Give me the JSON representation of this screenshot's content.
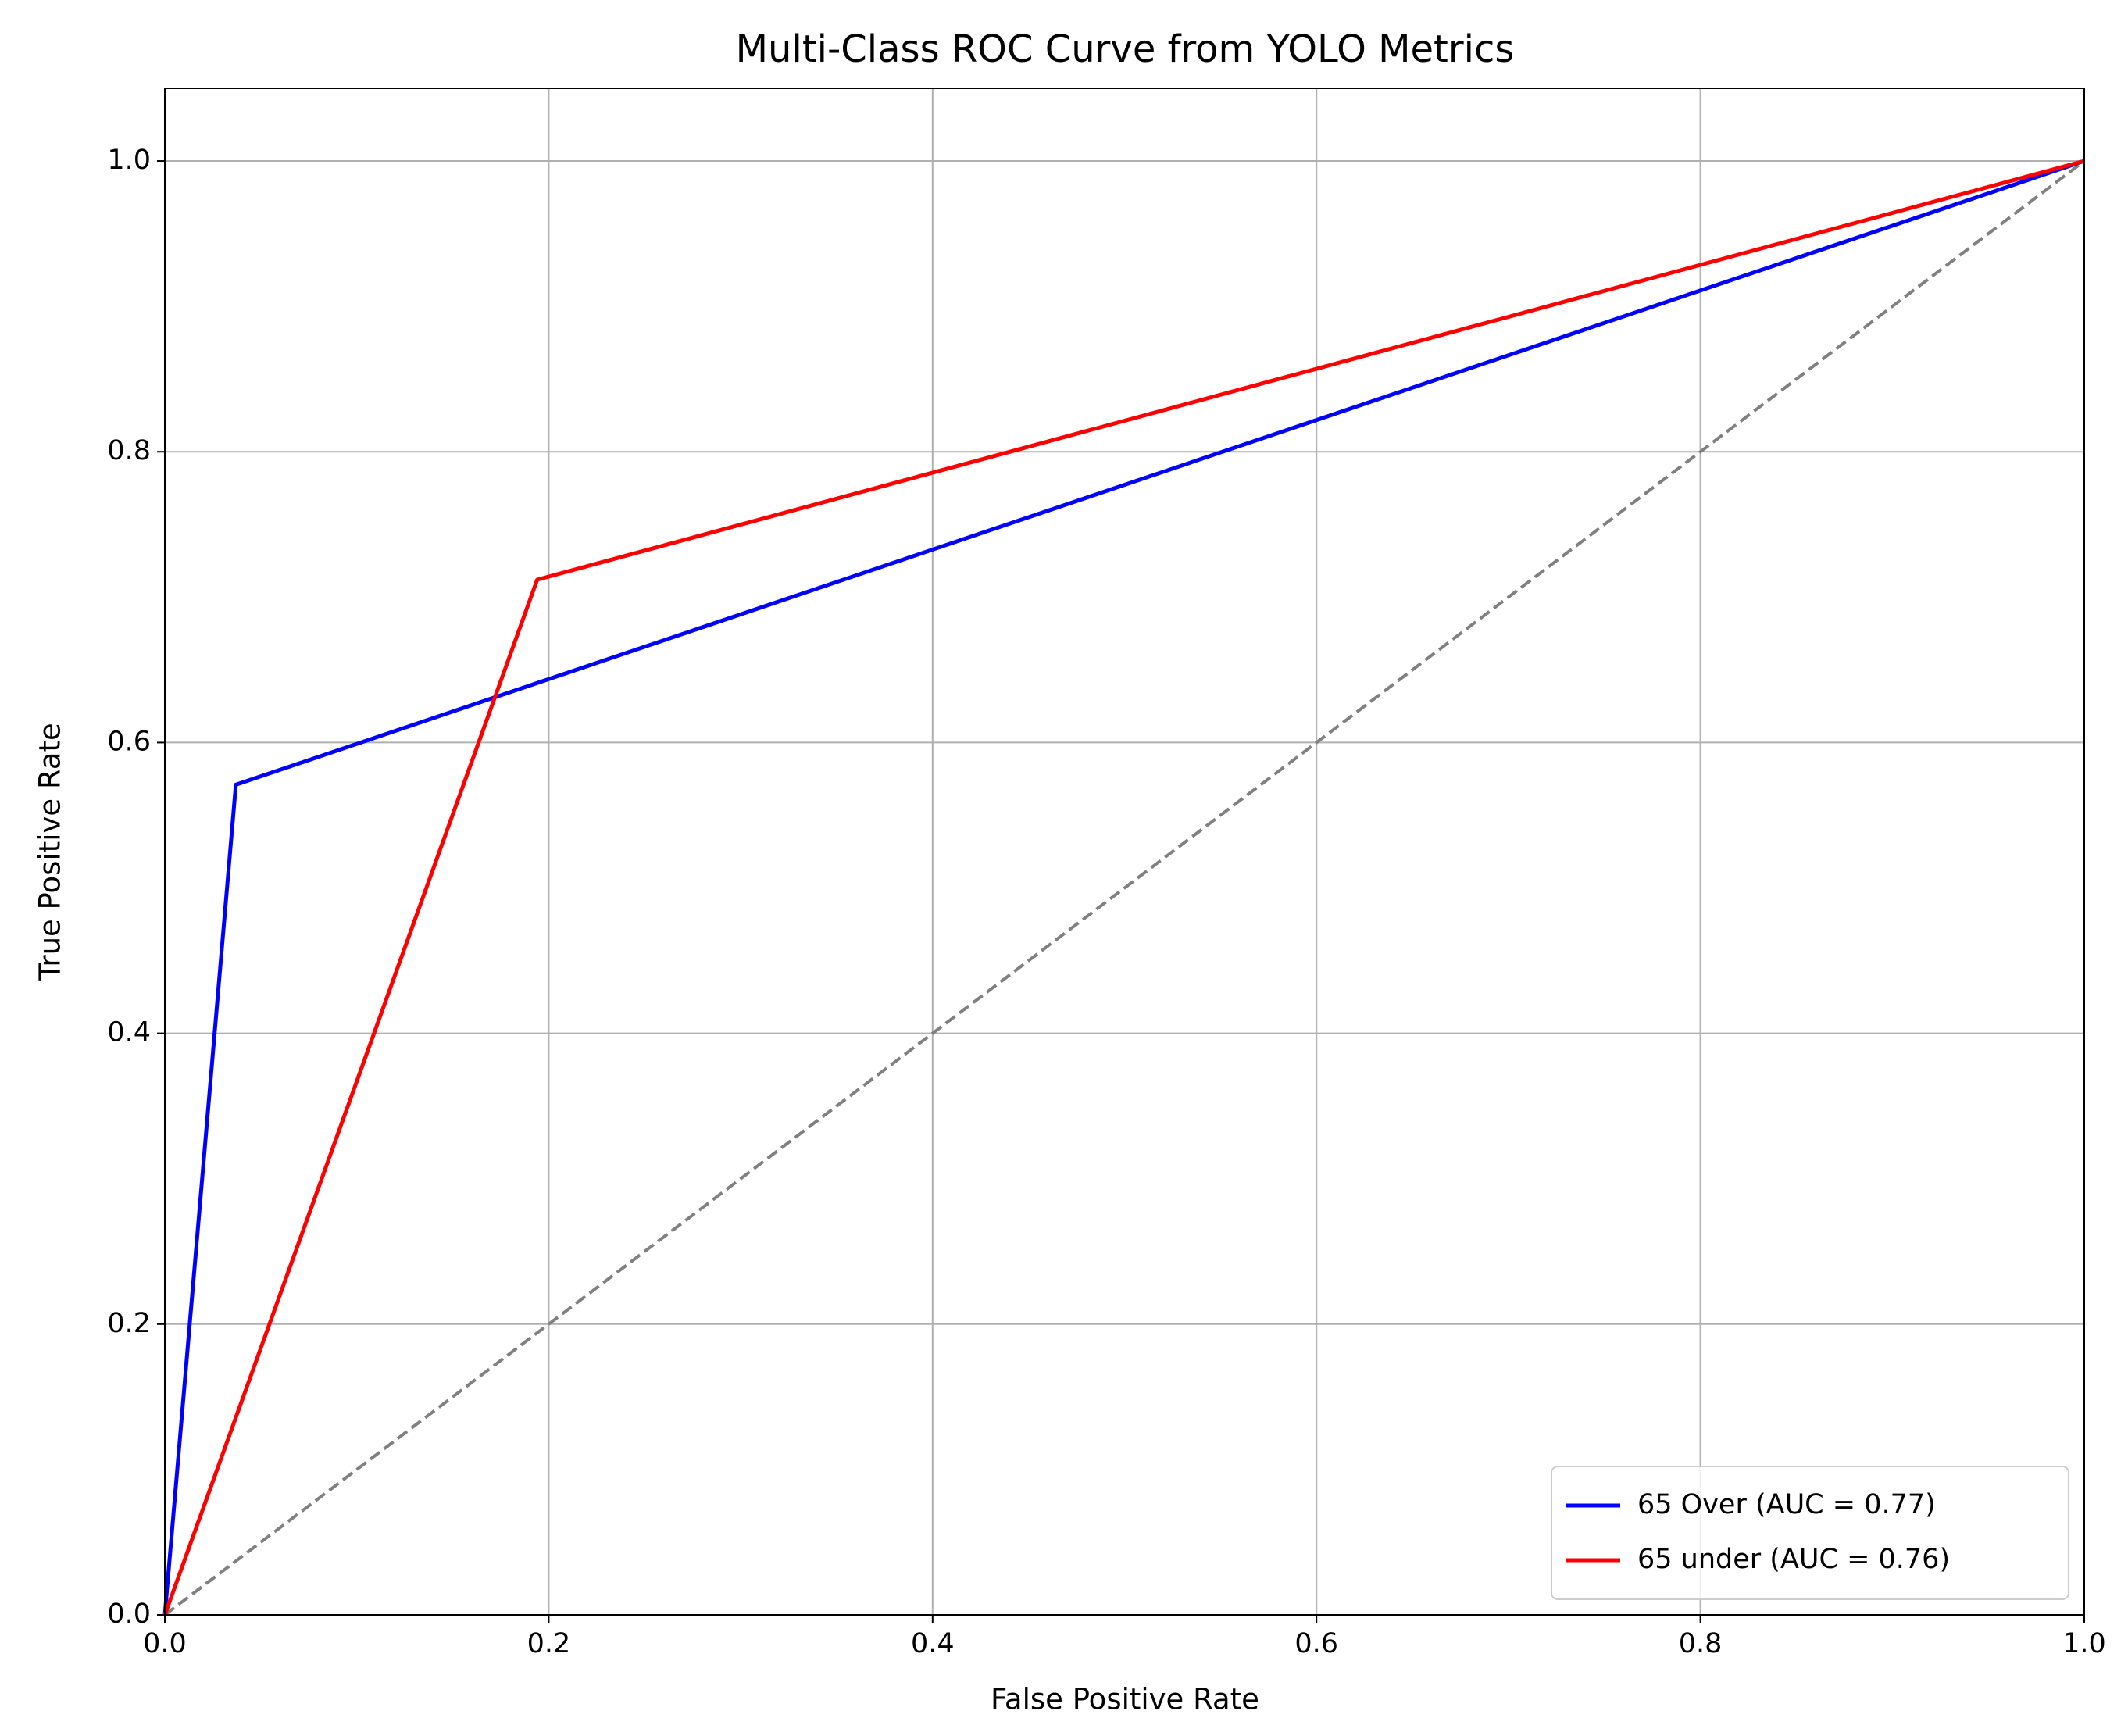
{
  "chart_data": {
    "type": "line",
    "title": "Multi-Class ROC Curve from YOLO Metrics",
    "x_label": "False Positive Rate",
    "y_label": "True Positive Rate",
    "series": [
      {
        "name": "65 Over (AUC = 0.77)",
        "color": "#0000ff",
        "x": [
          0,
          0.037,
          1
        ],
        "values": [
          0,
          0.571,
          1
        ]
      },
      {
        "name": "65 under (AUC = 0.76)",
        "color": "#ff0000",
        "x": [
          0,
          0.194,
          1
        ],
        "values": [
          0,
          0.712,
          1
        ]
      }
    ],
    "diagonal": {
      "color": "#808080",
      "dashed": true,
      "x": [
        0,
        1
      ],
      "values": [
        0,
        1
      ]
    },
    "xlim": [
      0,
      1
    ],
    "ylim": [
      0,
      1.05
    ],
    "xticks": [
      {
        "value": 0,
        "label": "0.0"
      },
      0.2,
      0.4,
      0.6,
      0.8,
      {
        "value": 1,
        "label": "1.0"
      }
    ],
    "yticks": [
      {
        "value": 0,
        "label": "0.0"
      },
      0.2,
      0.4,
      0.6,
      0.8,
      {
        "value": 1,
        "label": "1.0"
      }
    ],
    "grid": true,
    "legend": "lower right"
  }
}
